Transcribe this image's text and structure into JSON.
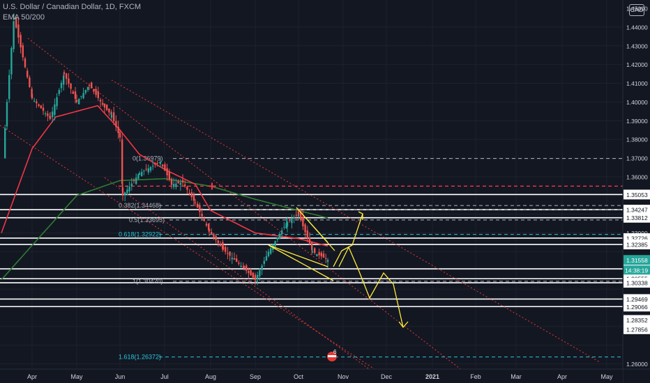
{
  "header": {
    "title": "U.S. Dollar / Canadian Dollar, 1D, FXCM",
    "indicator": "EMA 50/200",
    "currency": "CAD"
  },
  "colors": {
    "background": "#131722",
    "up": "#26a69a",
    "down": "#ef5350",
    "ema50": "#f23645",
    "ema200": "#2e7d32",
    "arrows": "#ffeb3b",
    "channel": "#e53935",
    "fib": "#b2b5be",
    "fib_teal": "#26c6da",
    "axis_text": "#d1d4dc"
  },
  "chart_data": {
    "type": "line",
    "symbol": "USDCAD",
    "timeframe": "1D",
    "x_ticks": [
      "Apr",
      "May",
      "Jun",
      "Jul",
      "Aug",
      "Sep",
      "Oct",
      "Nov",
      "Dec",
      "2021",
      "Feb",
      "Mar",
      "Apr",
      "May"
    ],
    "y_ticks": [
      "1.45000",
      "1.44000",
      "1.43000",
      "1.42000",
      "1.41000",
      "1.40000",
      "1.39000",
      "1.38000",
      "1.37000",
      "1.36000",
      "1.35053",
      "1.34247",
      "1.33812",
      "1.33000",
      "1.32726",
      "1.32385",
      "1.31558",
      "1.31082",
      "1.30555",
      "1.30338",
      "1.29469",
      "1.29066",
      "1.28352",
      "1.27856",
      "1.26000"
    ],
    "ylim": [
      1.2595,
      1.4515
    ],
    "price_label": "1.31558",
    "countdown": "14:38:19",
    "horizontal_lines": [
      "1.35053",
      "1.34247",
      "1.33812",
      "1.32726",
      "1.32385",
      "1.31082",
      "1.30555",
      "1.30338",
      "1.29469",
      "1.29066"
    ],
    "fib_levels": [
      {
        "label": "0(1.36979)",
        "value": 1.36979
      },
      {
        "label": "0.382(1.34468)",
        "value": 1.34468
      },
      {
        "label": "0.5(1.33695)",
        "value": 1.33695
      },
      {
        "label": "0.618(1.32922)",
        "value": 1.32922
      },
      {
        "label": "1(1.30420)",
        "value": 1.3042
      },
      {
        "label": "1.618(1.26372)",
        "value": 1.26372
      }
    ],
    "resistance_line": 1.355,
    "cross_marker": {
      "date": "Aug",
      "value": 1.355
    },
    "event_badge": "6",
    "price_path": [
      {
        "x": "Mar",
        "y": 1.37
      },
      {
        "x": "Mar",
        "y": 1.4
      },
      {
        "x": "Mar",
        "y": 1.445
      },
      {
        "x": "Apr",
        "y": 1.402
      },
      {
        "x": "Apr",
        "y": 1.391
      },
      {
        "x": "Apr",
        "y": 1.415
      },
      {
        "x": "May",
        "y": 1.4
      },
      {
        "x": "May",
        "y": 1.409
      },
      {
        "x": "May",
        "y": 1.397
      },
      {
        "x": "May",
        "y": 1.393
      },
      {
        "x": "Jun",
        "y": 1.381
      },
      {
        "x": "Jun",
        "y": 1.35
      },
      {
        "x": "Jun",
        "y": 1.362
      },
      {
        "x": "Jul",
        "y": 1.368
      },
      {
        "x": "Jul",
        "y": 1.356
      },
      {
        "x": "Jul",
        "y": 1.357
      },
      {
        "x": "Aug",
        "y": 1.346
      },
      {
        "x": "Aug",
        "y": 1.331
      },
      {
        "x": "Aug",
        "y": 1.321
      },
      {
        "x": "Sep",
        "y": 1.311
      },
      {
        "x": "Sep",
        "y": 1.305
      },
      {
        "x": "Sep",
        "y": 1.32
      },
      {
        "x": "Oct",
        "y": 1.336
      },
      {
        "x": "Oct",
        "y": 1.34
      },
      {
        "x": "Oct",
        "y": 1.32
      },
      {
        "x": "Oct",
        "y": 1.3156
      }
    ],
    "ema50": [
      {
        "x": "Mar",
        "y": 1.33
      },
      {
        "x": "Apr",
        "y": 1.375
      },
      {
        "x": "Apr",
        "y": 1.392
      },
      {
        "x": "May",
        "y": 1.395
      },
      {
        "x": "May",
        "y": 1.398
      },
      {
        "x": "Jun",
        "y": 1.385
      },
      {
        "x": "Jun",
        "y": 1.372
      },
      {
        "x": "Jul",
        "y": 1.364
      },
      {
        "x": "Aug",
        "y": 1.356
      },
      {
        "x": "Aug",
        "y": 1.342
      },
      {
        "x": "Sep",
        "y": 1.33
      },
      {
        "x": "Oct",
        "y": 1.327
      },
      {
        "x": "Oct",
        "y": 1.323
      }
    ],
    "ema200": [
      {
        "x": "Apr",
        "y": 1.335
      },
      {
        "x": "May",
        "y": 1.35
      },
      {
        "x": "Jun",
        "y": 1.358
      },
      {
        "x": "Jul",
        "y": 1.359
      },
      {
        "x": "Aug",
        "y": 1.355
      },
      {
        "x": "Sep",
        "y": 1.348
      },
      {
        "x": "Oct",
        "y": 1.342
      },
      {
        "x": "Oct",
        "y": 1.338
      }
    ]
  }
}
